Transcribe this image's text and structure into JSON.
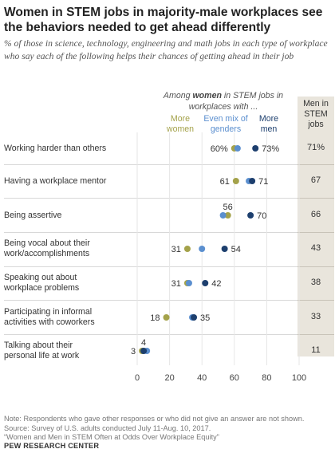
{
  "title": "Women in STEM jobs in majority-male workplaces see the behaviors needed to get ahead differently",
  "subtitle": "% of those in science, technology, engineering and math jobs in each type of workplace who say each of the following helps their chances of getting ahead in their job",
  "legend": {
    "among_prefix": "Among ",
    "among_bold": "women",
    "among_suffix": " in STEM jobs in workplaces with ...",
    "more_women": "More women",
    "even_mix": "Even mix of genders",
    "more_men": "More men",
    "men_in_stem_jobs": "Men in STEM jobs"
  },
  "colors": {
    "more_women": "#a4a24a",
    "even_mix": "#5b8fcf",
    "more_men": "#1d3f6e",
    "panel": "#e9e5dc"
  },
  "chart_data": {
    "type": "scatter",
    "xlim": [
      0,
      100
    ],
    "xticks": [
      "0",
      "20",
      "40",
      "60",
      "80",
      "100"
    ],
    "categories": [
      "Working harder than others",
      "Having a workplace mentor",
      "Being assertive",
      "Being vocal about their work/accomplishments",
      "Speaking out about workplace problems",
      "Participating in informal activities with coworkers",
      "Talking about their personal life at work"
    ],
    "series": [
      {
        "name": "More women",
        "values": [
          60,
          61,
          56,
          31,
          31,
          18,
          3
        ]
      },
      {
        "name": "Even mix of genders",
        "values": [
          62,
          69,
          53,
          40,
          32,
          34,
          6
        ]
      },
      {
        "name": "More men",
        "values": [
          73,
          71,
          70,
          54,
          42,
          35,
          4
        ]
      }
    ],
    "men_in_stem_jobs": [
      71,
      67,
      66,
      43,
      38,
      33,
      11
    ],
    "labels": [
      {
        "left": "60%",
        "right": "73%"
      },
      {
        "left": "61",
        "right": "71"
      },
      {
        "top": "56",
        "right": "70"
      },
      {
        "left": "31",
        "right": "54"
      },
      {
        "left": "31",
        "right": "42"
      },
      {
        "left": "18",
        "right": "35"
      },
      {
        "left": "3",
        "top": "4"
      }
    ],
    "men_labels": [
      "71%",
      "67",
      "66",
      "43",
      "38",
      "33",
      "11"
    ]
  },
  "rows": [
    {
      "label_lines": [
        "Working harder than others"
      ]
    },
    {
      "label_lines": [
        "Having a workplace mentor"
      ]
    },
    {
      "label_lines": [
        "Being assertive"
      ]
    },
    {
      "label_lines": [
        "Being vocal about their",
        "work/accomplishments"
      ]
    },
    {
      "label_lines": [
        "Speaking out about",
        "workplace problems"
      ]
    },
    {
      "label_lines": [
        "Participating in informal",
        "activities with coworkers"
      ]
    },
    {
      "label_lines": [
        "Talking about their",
        "personal life at work"
      ]
    }
  ],
  "note_lines": [
    "Note: Respondents who gave other responses or who did not give an answer are not shown.",
    "Source: Survey of U.S. adults conducted July 11-Aug. 10, 2017.",
    "“Women and Men in STEM Often at Odds Over Workplace Equity”"
  ],
  "source_org": "PEW RESEARCH CENTER"
}
